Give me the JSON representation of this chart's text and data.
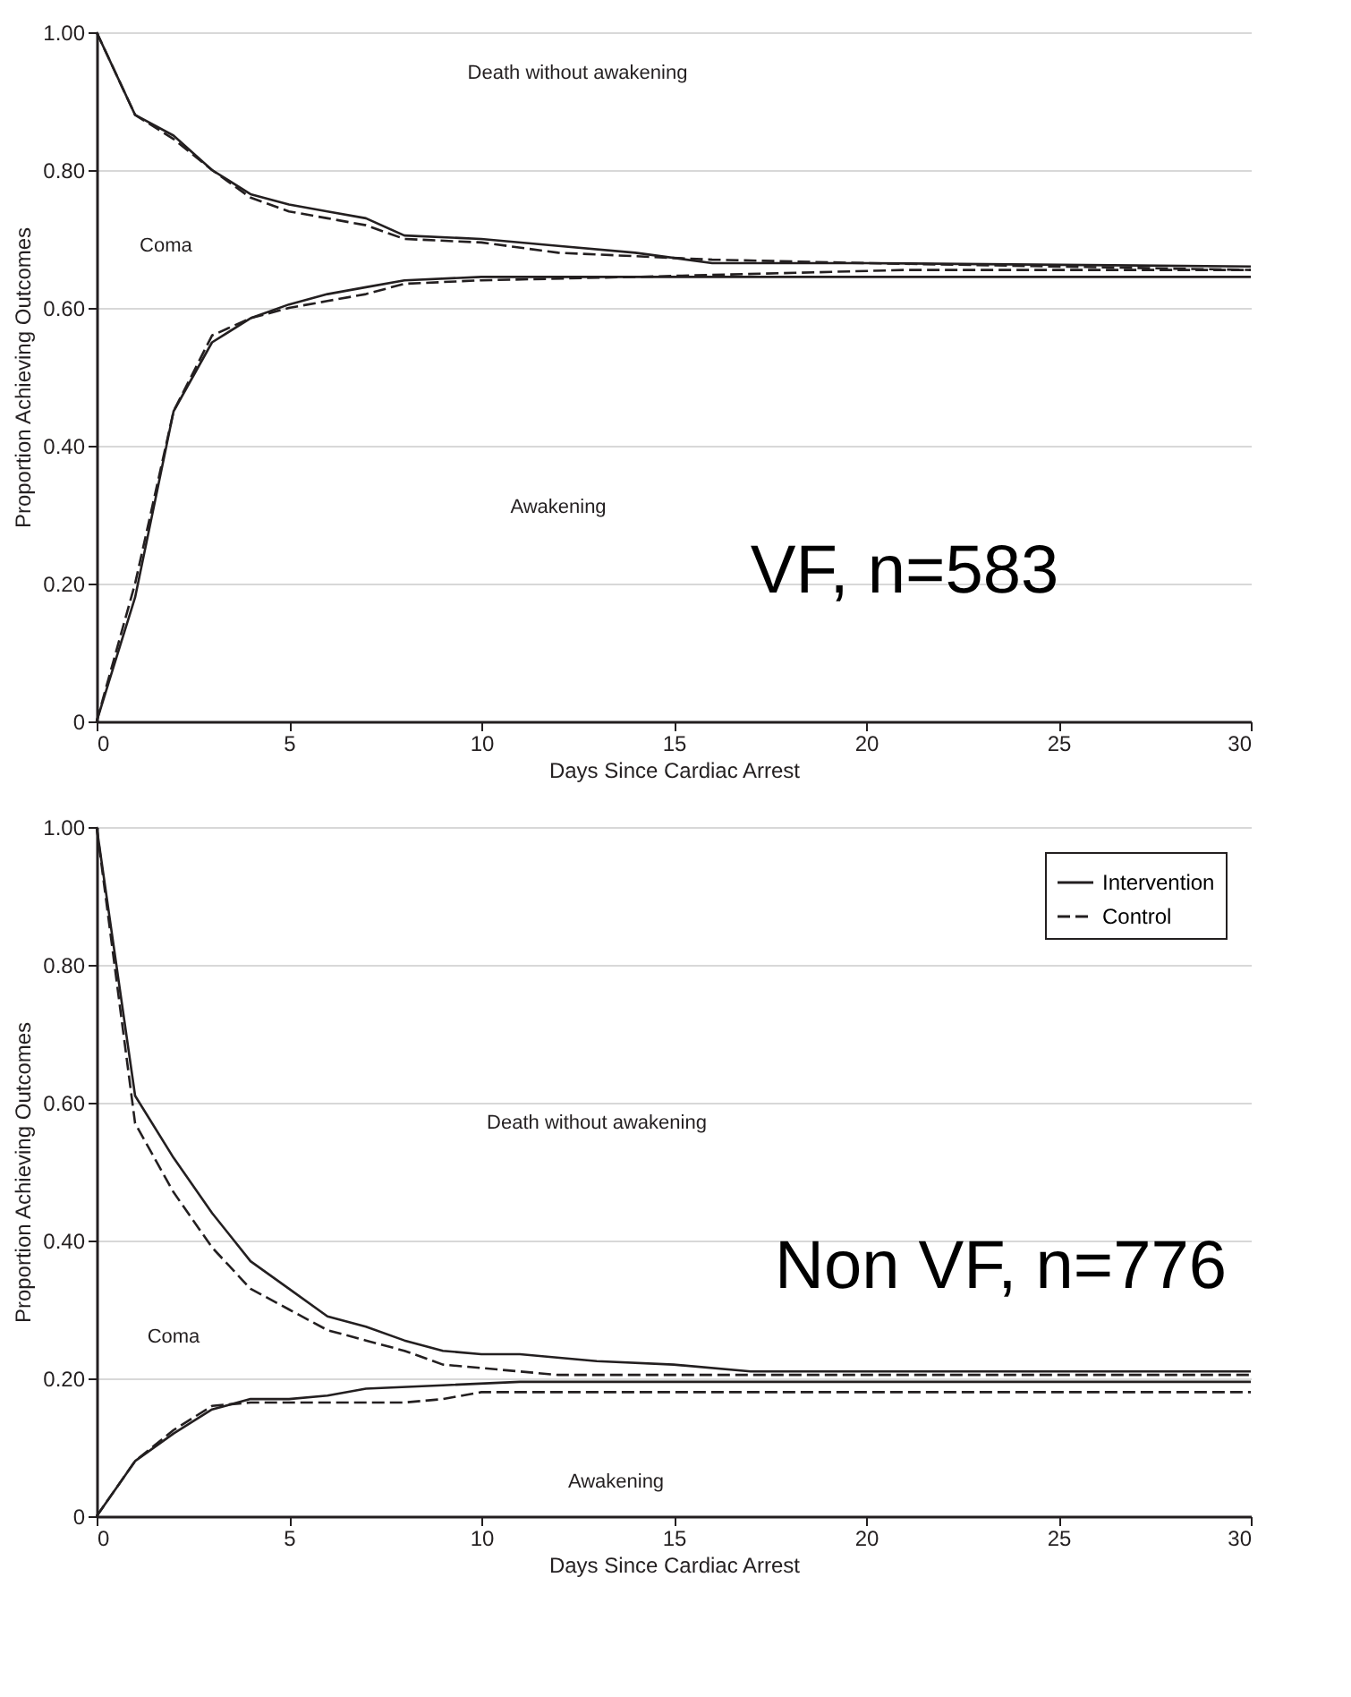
{
  "chart_data": [
    {
      "type": "line",
      "xlabel": "Days Since Cardiac Arrest",
      "ylabel": "Proportion Achieving Outcomes",
      "annotations": [
        "Death without awakening",
        "Coma",
        "Awakening",
        "VF, n=583"
      ],
      "series": [
        {
          "color": "#231f20",
          "line_style": "solid",
          "x": [
            0,
            1,
            2,
            3,
            4,
            5,
            6,
            7,
            8,
            10,
            12,
            14,
            16,
            20,
            30
          ],
          "values": [
            1.0,
            0.88,
            0.85,
            0.8,
            0.765,
            0.75,
            0.74,
            0.73,
            0.705,
            0.7,
            0.69,
            0.68,
            0.665,
            0.665,
            0.66
          ]
        },
        {
          "color": "#231f20",
          "line_style": "dashed",
          "x": [
            0,
            1,
            2,
            3,
            4,
            5,
            6,
            7,
            8,
            10,
            12,
            14,
            16,
            20,
            30
          ],
          "values": [
            1.0,
            0.88,
            0.845,
            0.8,
            0.76,
            0.74,
            0.73,
            0.72,
            0.7,
            0.695,
            0.68,
            0.675,
            0.67,
            0.665,
            0.655
          ]
        },
        {
          "color": "#231f20",
          "line_style": "solid",
          "x": [
            0,
            1,
            2,
            3,
            4,
            5,
            6,
            7,
            8,
            10,
            30
          ],
          "values": [
            0,
            0.18,
            0.45,
            0.55,
            0.585,
            0.605,
            0.62,
            0.63,
            0.64,
            0.645,
            0.645
          ]
        },
        {
          "color": "#231f20",
          "line_style": "dashed",
          "x": [
            0,
            1,
            2,
            3,
            4,
            5,
            6,
            7,
            8,
            10,
            14,
            21,
            30
          ],
          "values": [
            0,
            0.2,
            0.45,
            0.56,
            0.585,
            0.6,
            0.61,
            0.62,
            0.635,
            0.64,
            0.645,
            0.655,
            0.655
          ]
        }
      ],
      "xlim": [
        0,
        30
      ],
      "xticks": [
        0,
        5,
        10,
        15,
        20,
        25,
        30
      ],
      "ylim": [
        0,
        1
      ],
      "yticks": [
        0,
        {
          "value": 0.2,
          "label": "0.20"
        },
        {
          "value": 0.4,
          "label": "0.40"
        },
        {
          "value": 0.6,
          "label": "0.60"
        },
        {
          "value": 0.8,
          "label": "0.80"
        },
        {
          "value": 1,
          "label": "1.00"
        }
      ],
      "grid": "y"
    },
    {
      "type": "line",
      "xlabel": "Days Since Cardiac Arrest",
      "ylabel": "Proportion Achieving Outcomes",
      "annotations": [
        "Death without awakening",
        "Coma",
        "Awakening",
        "Non VF, n=776"
      ],
      "series": [
        {
          "name": "Intervention",
          "color": "#231f20",
          "line_style": "solid",
          "x": [
            0,
            1,
            2,
            3,
            4,
            5,
            6,
            7,
            8,
            9,
            10,
            11,
            13,
            15,
            17,
            30
          ],
          "values": [
            1.0,
            0.61,
            0.52,
            0.44,
            0.37,
            0.33,
            0.29,
            0.275,
            0.255,
            0.24,
            0.235,
            0.235,
            0.225,
            0.22,
            0.21,
            0.21
          ]
        },
        {
          "name": "Control",
          "color": "#231f20",
          "line_style": "dashed",
          "x": [
            0,
            1,
            2,
            3,
            4,
            5,
            6,
            7,
            8,
            9,
            10,
            12,
            14,
            17,
            30
          ],
          "values": [
            1.0,
            0.57,
            0.47,
            0.39,
            0.33,
            0.3,
            0.27,
            0.255,
            0.24,
            0.22,
            0.215,
            0.205,
            0.205,
            0.205,
            0.205
          ]
        },
        {
          "color": "#231f20",
          "line_style": "solid",
          "x": [
            0,
            1,
            2,
            3,
            4,
            5,
            6,
            7,
            9,
            11,
            15,
            30
          ],
          "values": [
            0,
            0.08,
            0.12,
            0.155,
            0.17,
            0.17,
            0.175,
            0.185,
            0.19,
            0.195,
            0.195,
            0.195
          ]
        },
        {
          "color": "#231f20",
          "line_style": "dashed",
          "x": [
            0,
            1,
            2,
            3,
            4,
            5,
            8,
            9,
            10,
            30
          ],
          "values": [
            0,
            0.08,
            0.125,
            0.16,
            0.165,
            0.165,
            0.165,
            0.17,
            0.18,
            0.18
          ]
        }
      ],
      "xlim": [
        0,
        30
      ],
      "xticks": [
        0,
        5,
        10,
        15,
        20,
        25,
        30
      ],
      "ylim": [
        0,
        1
      ],
      "yticks": [
        0,
        {
          "value": 0.2,
          "label": "0.20"
        },
        {
          "value": 0.4,
          "label": "0.40"
        },
        {
          "value": 0.6,
          "label": "0.60"
        },
        {
          "value": 0.8,
          "label": "0.80"
        },
        {
          "value": 1,
          "label": "1.00"
        }
      ],
      "grid": "y",
      "legend": "top right"
    }
  ]
}
